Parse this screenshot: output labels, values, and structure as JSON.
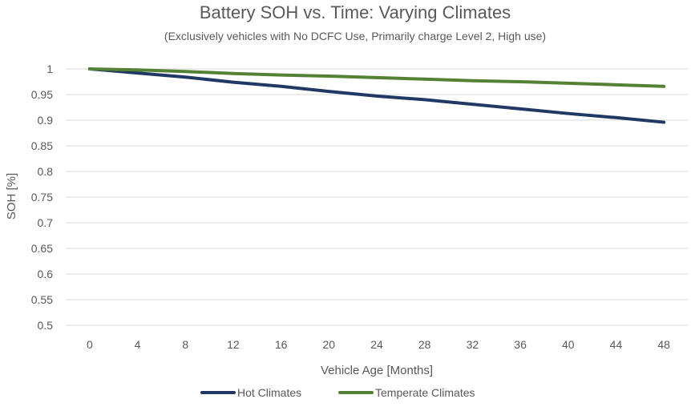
{
  "chart_data": {
    "type": "line",
    "title": "Battery SOH vs. Time: Varying Climates",
    "subtitle": "(Exclusively vehicles with No DCFC Use, Primarily charge Level 2, High use)",
    "xlabel": "Vehicle Age [Months]",
    "ylabel": "SOH [%]",
    "x": [
      0,
      4,
      8,
      12,
      16,
      20,
      24,
      28,
      32,
      36,
      40,
      44,
      48
    ],
    "x_tick_labels": [
      "0",
      "4",
      "8",
      "12",
      "16",
      "20",
      "24",
      "28",
      "32",
      "36",
      "40",
      "44",
      "48"
    ],
    "y_tick_labels": [
      "1",
      "0.95",
      "0.9",
      "0.85",
      "0.8",
      "0.75",
      "0.7",
      "0.65",
      "0.6",
      "0.55",
      "0.5"
    ],
    "y_ticks": [
      1,
      0.95,
      0.9,
      0.85,
      0.8,
      0.75,
      0.7,
      0.65,
      0.6,
      0.55,
      0.5
    ],
    "ylim": [
      0.5,
      1.0
    ],
    "grid": true,
    "legend_position": "bottom",
    "series": [
      {
        "name": "Hot Climates",
        "color": "#203864",
        "values": [
          1.0,
          0.992,
          0.984,
          0.974,
          0.966,
          0.956,
          0.947,
          0.94,
          0.931,
          0.922,
          0.913,
          0.905,
          0.896
        ]
      },
      {
        "name": "Temperate Climates",
        "color": "#548235",
        "values": [
          1.0,
          0.998,
          0.995,
          0.991,
          0.988,
          0.986,
          0.983,
          0.98,
          0.977,
          0.975,
          0.972,
          0.969,
          0.966
        ]
      }
    ]
  }
}
